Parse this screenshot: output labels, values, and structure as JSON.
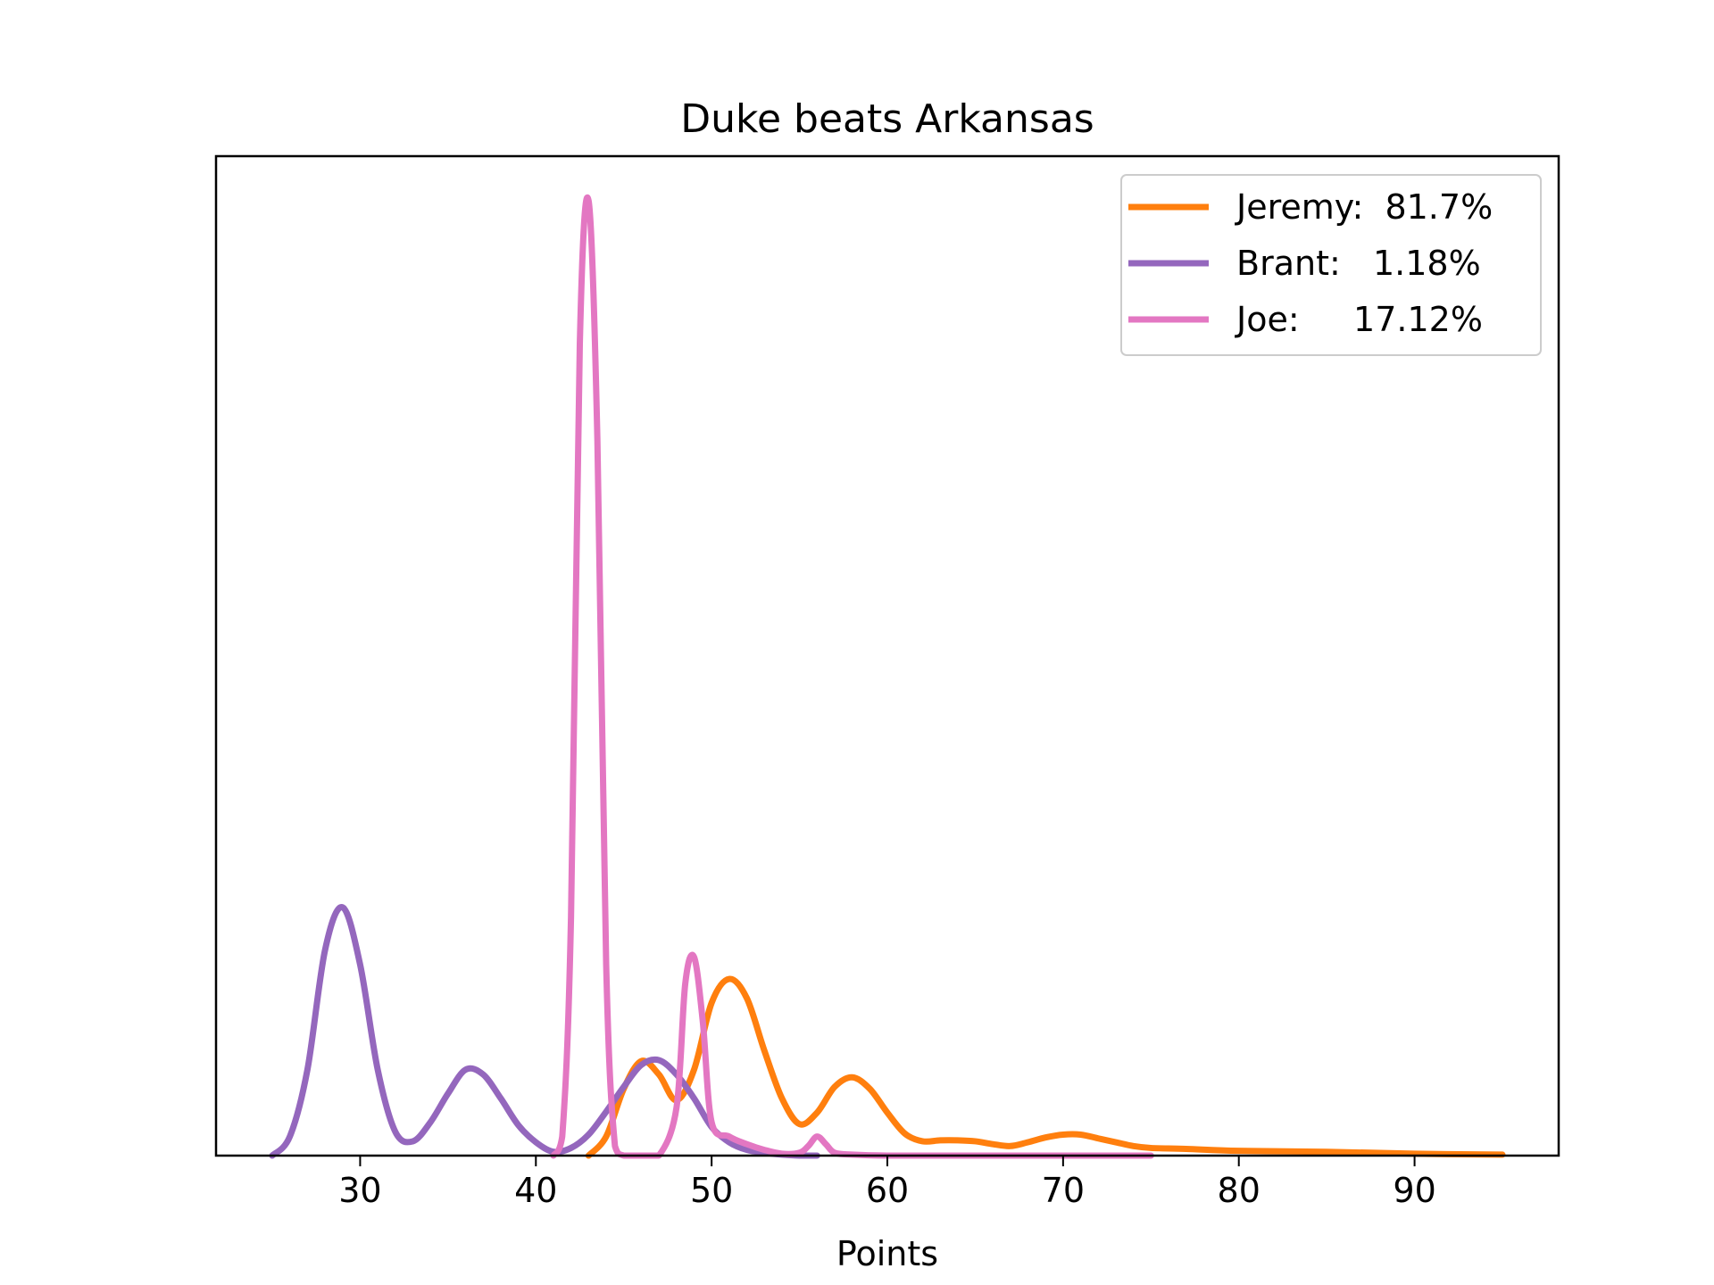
{
  "chart_data": {
    "type": "line",
    "title": "Duke beats Arkansas",
    "xlabel": "Points",
    "ylabel": "",
    "xlim": [
      21.8,
      98.2
    ],
    "ylim": [
      0,
      1.0
    ],
    "xticks": [
      30,
      40,
      50,
      60,
      70,
      80,
      90
    ],
    "yticks_shown": false,
    "grid": false,
    "legend_position": "top-right",
    "series": [
      {
        "name": "Jeremy:  81.7%",
        "color": "#ff7f0e",
        "x": [
          43,
          44,
          45,
          46,
          47,
          48,
          49,
          50,
          51,
          52,
          53,
          54,
          55,
          56,
          57,
          58,
          59,
          60,
          61,
          62,
          63,
          64,
          65,
          66,
          67,
          68,
          69,
          70,
          71,
          72,
          73,
          74,
          75,
          77,
          80,
          85,
          90,
          95
        ],
        "y": [
          0.0,
          0.02,
          0.07,
          0.099,
          0.085,
          0.058,
          0.09,
          0.16,
          0.185,
          0.165,
          0.11,
          0.06,
          0.033,
          0.045,
          0.072,
          0.082,
          0.07,
          0.045,
          0.023,
          0.015,
          0.016,
          0.016,
          0.015,
          0.012,
          0.01,
          0.014,
          0.019,
          0.022,
          0.022,
          0.018,
          0.014,
          0.01,
          0.008,
          0.007,
          0.005,
          0.004,
          0.002,
          0.001
        ]
      },
      {
        "name": "Brant:   1.18%",
        "color": "#9467bd",
        "x": [
          25,
          26,
          27,
          28,
          29,
          30,
          31,
          32,
          33,
          34,
          35,
          36,
          37,
          38,
          39,
          40,
          41,
          42,
          43,
          44,
          45,
          46,
          47,
          48,
          49,
          50,
          51,
          52,
          53,
          54,
          55,
          56
        ],
        "y": [
          0.0,
          0.02,
          0.09,
          0.215,
          0.26,
          0.2,
          0.09,
          0.025,
          0.015,
          0.035,
          0.065,
          0.09,
          0.085,
          0.06,
          0.032,
          0.014,
          0.004,
          0.008,
          0.022,
          0.046,
          0.072,
          0.095,
          0.1,
          0.085,
          0.06,
          0.03,
          0.014,
          0.006,
          0.003,
          0.001,
          0.0,
          0.0
        ]
      },
      {
        "name": "Joe:     17.12%",
        "color": "#e377c2",
        "x": [
          41,
          41.5,
          42,
          42.5,
          43,
          43.5,
          44,
          44.5,
          45,
          46,
          47,
          48,
          48.5,
          49,
          49.5,
          50,
          51,
          52,
          53,
          54,
          55,
          55.5,
          56,
          56.5,
          57,
          58,
          60,
          65,
          70,
          75
        ],
        "y": [
          0.0,
          0.02,
          0.25,
          0.85,
          1.0,
          0.75,
          0.2,
          0.01,
          0.0,
          0.0,
          0.0,
          0.05,
          0.18,
          0.208,
          0.14,
          0.035,
          0.02,
          0.012,
          0.006,
          0.002,
          0.003,
          0.01,
          0.02,
          0.012,
          0.003,
          0.001,
          0.0,
          0.0,
          0.0,
          0.0
        ]
      }
    ]
  }
}
